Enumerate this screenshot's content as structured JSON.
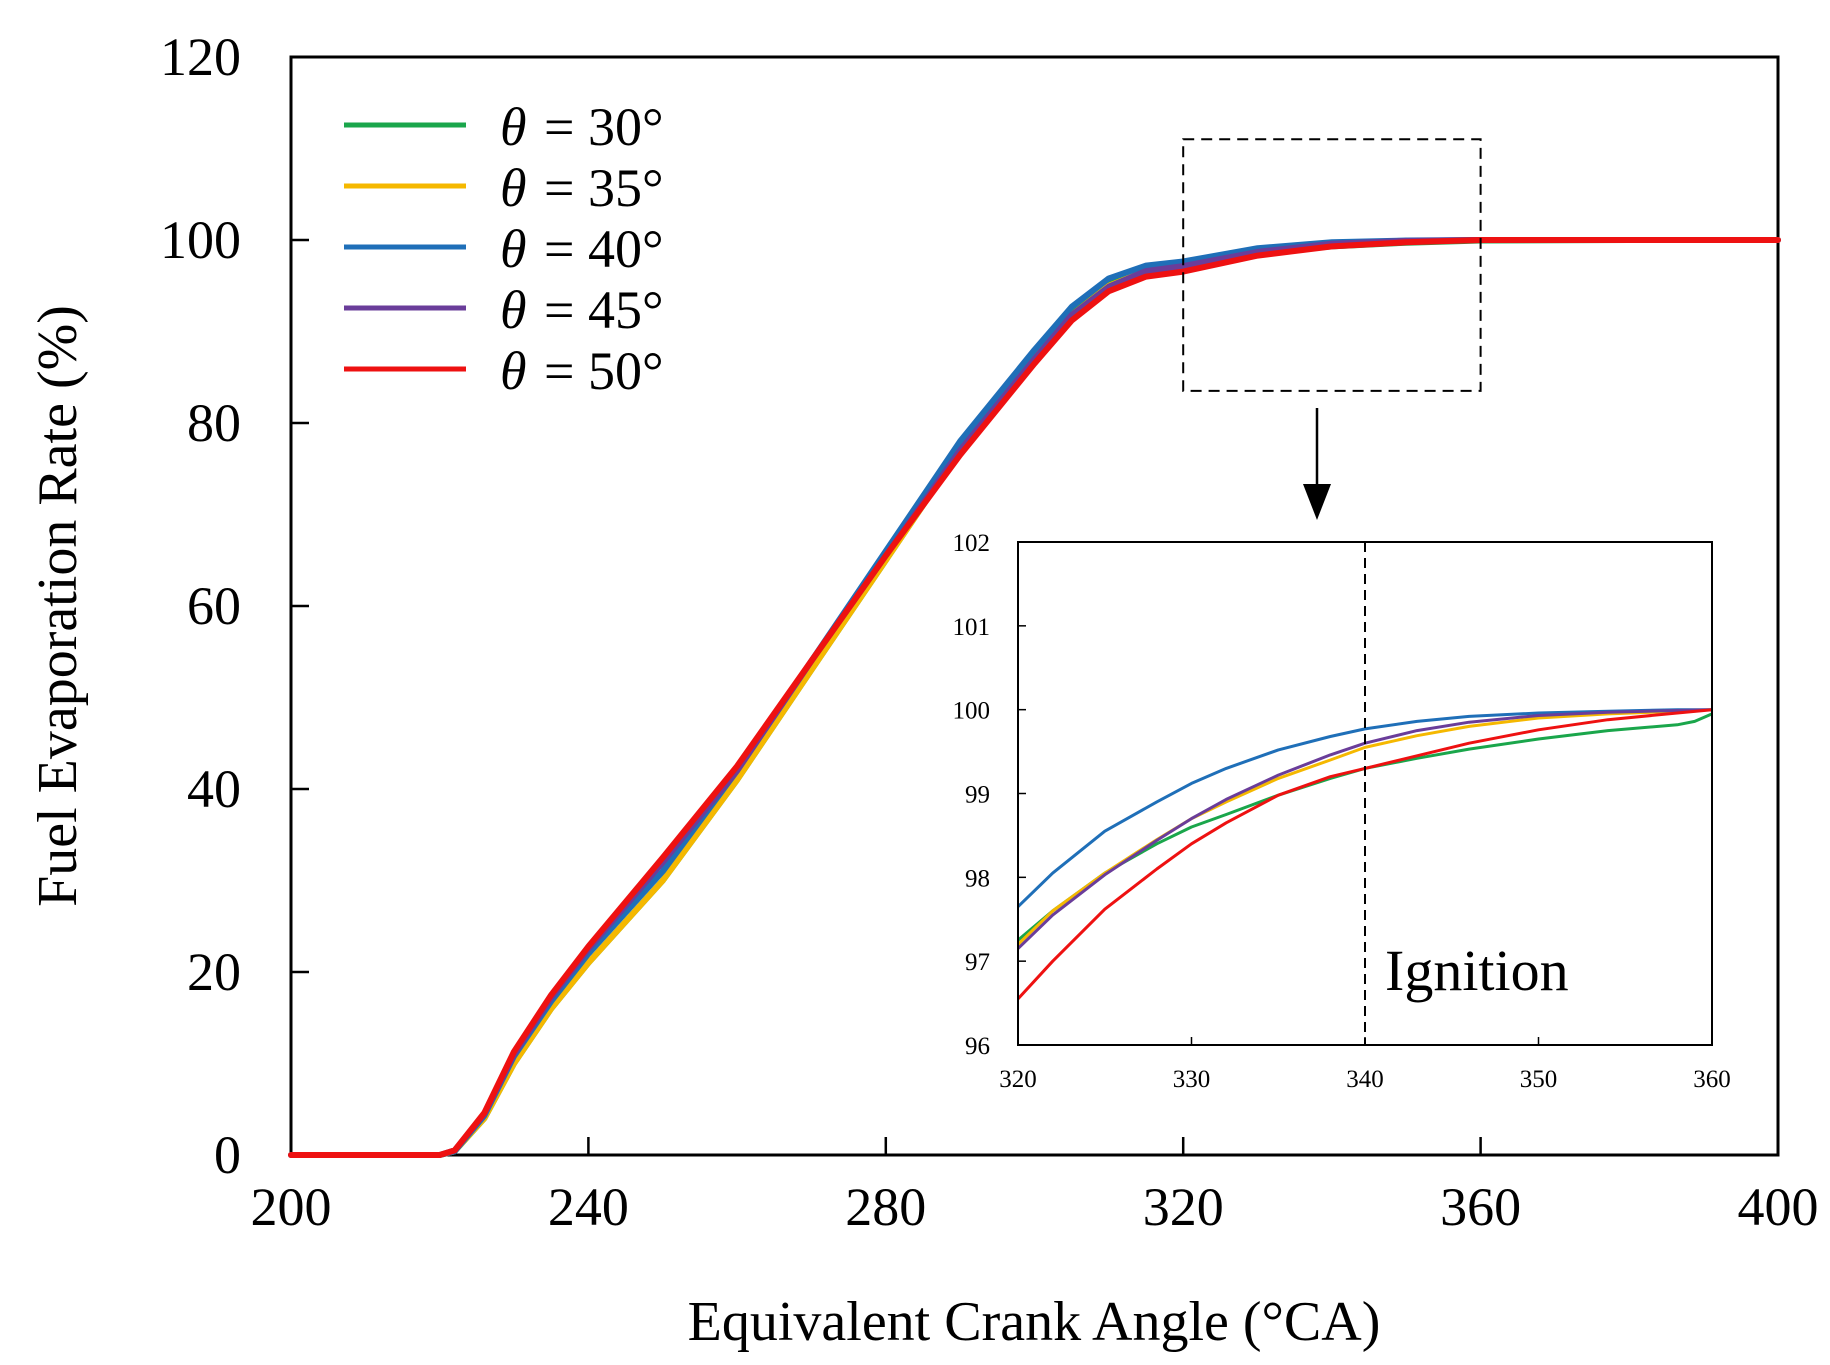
{
  "colors": {
    "theta_30": "#1aa64b",
    "theta_35": "#f5b800",
    "theta_40": "#1f6fb8",
    "theta_45": "#6a3d9a",
    "theta_50": "#ee1111"
  },
  "chart_data": [
    {
      "type": "line",
      "title": "",
      "xlabel": "Equivalent Crank Angle  (°CA)",
      "ylabel": "Fuel Evaporation Rate  (%)",
      "xlim": [
        200,
        400
      ],
      "ylim": [
        0,
        120
      ],
      "xticks": [
        "200",
        "240",
        "280",
        "320",
        "360",
        "400"
      ],
      "yticks": [
        "0",
        "20",
        "40",
        "60",
        "80",
        "100",
        "120"
      ],
      "grid": false,
      "legend_position": "top-left",
      "series": [
        {
          "name": "30°",
          "color_key": "theta_30",
          "x": [
            200,
            220,
            222,
            226,
            230,
            235,
            240,
            250,
            260,
            270,
            280,
            290,
            300,
            305,
            310,
            315,
            320,
            330,
            340,
            350,
            360,
            380,
            400
          ],
          "y": [
            0,
            0,
            0.4,
            4,
            10,
            16,
            21,
            30,
            41,
            53,
            65,
            77,
            87,
            92,
            95.2,
            97.0,
            97.3,
            98.6,
            99.3,
            99.7,
            99.95,
            100,
            100
          ]
        },
        {
          "name": "35°",
          "color_key": "theta_35",
          "x": [
            200,
            220,
            222,
            226,
            230,
            235,
            240,
            250,
            260,
            270,
            280,
            290,
            300,
            305,
            310,
            315,
            320,
            330,
            340,
            350,
            360,
            380,
            400
          ],
          "y": [
            0,
            0,
            0.4,
            4,
            10,
            16,
            21,
            30,
            41,
            53,
            65,
            77,
            87,
            91.8,
            95.0,
            96.6,
            97.2,
            98.7,
            99.5,
            99.85,
            100,
            100,
            100
          ]
        },
        {
          "name": "40°",
          "color_key": "theta_40",
          "x": [
            200,
            220,
            222,
            226,
            230,
            235,
            240,
            250,
            260,
            270,
            280,
            290,
            300,
            305,
            310,
            315,
            320,
            330,
            340,
            350,
            360,
            380,
            400
          ],
          "y": [
            0,
            0,
            0.4,
            4.3,
            10.8,
            16.8,
            22,
            31,
            42,
            54,
            66,
            78,
            88,
            92.7,
            95.8,
            97.2,
            97.65,
            99.1,
            99.75,
            99.95,
            100,
            100,
            100
          ]
        },
        {
          "name": "45°",
          "color_key": "theta_45",
          "x": [
            200,
            220,
            222,
            226,
            230,
            235,
            240,
            250,
            260,
            270,
            280,
            290,
            300,
            305,
            310,
            315,
            320,
            330,
            340,
            350,
            360,
            380,
            400
          ],
          "y": [
            0,
            0,
            0.5,
            4.5,
            11,
            17.2,
            22.5,
            32,
            42,
            54,
            65.5,
            77,
            87,
            91.8,
            94.9,
            96.6,
            97.15,
            98.7,
            99.6,
            99.9,
            100,
            100,
            100
          ]
        },
        {
          "name": "50°",
          "color_key": "theta_50",
          "x": [
            200,
            220,
            222,
            226,
            230,
            235,
            240,
            250,
            260,
            270,
            280,
            290,
            300,
            305,
            310,
            315,
            320,
            330,
            340,
            350,
            360,
            380,
            400
          ],
          "y": [
            0,
            0,
            0.5,
            4.6,
            11.3,
            17.5,
            22.8,
            32.5,
            42.5,
            54,
            65.5,
            76.5,
            86.5,
            91.2,
            94.4,
            96.0,
            96.55,
            98.3,
            99.3,
            99.75,
            100,
            100,
            100
          ]
        }
      ],
      "legend": [
        {
          "symbol": "θ",
          "text": "= 30°",
          "color_key": "theta_30"
        },
        {
          "symbol": "θ",
          "text": "= 35°",
          "color_key": "theta_35"
        },
        {
          "symbol": "θ",
          "text": "= 40°",
          "color_key": "theta_40"
        },
        {
          "symbol": "θ",
          "text": "= 45°",
          "color_key": "theta_45"
        },
        {
          "symbol": "θ",
          "text": "= 50°",
          "color_key": "theta_50"
        }
      ],
      "zoom_box": {
        "x_range": [
          320,
          360
        ],
        "y_range": [
          83.5,
          111
        ]
      }
    },
    {
      "type": "line",
      "title": "",
      "xlabel": "",
      "ylabel": "",
      "xlim": [
        320,
        360
      ],
      "ylim": [
        96,
        102
      ],
      "xticks": [
        "320",
        "330",
        "340",
        "350",
        "360"
      ],
      "yticks": [
        "96",
        "97",
        "98",
        "99",
        "100",
        "101",
        "102"
      ],
      "grid": false,
      "annotation": {
        "text": "Ignition",
        "x": 340
      },
      "series": [
        {
          "name": "30°",
          "color_key": "theta_30",
          "x": [
            320,
            322,
            325,
            328,
            330,
            332,
            335,
            338,
            340,
            343,
            346,
            350,
            354,
            358,
            359,
            360
          ],
          "y": [
            97.25,
            97.6,
            98.05,
            98.4,
            98.6,
            98.75,
            98.98,
            99.18,
            99.3,
            99.42,
            99.53,
            99.65,
            99.75,
            99.82,
            99.86,
            99.95
          ]
        },
        {
          "name": "35°",
          "color_key": "theta_35",
          "x": [
            320,
            322,
            325,
            328,
            330,
            332,
            335,
            338,
            340,
            343,
            346,
            350,
            354,
            358,
            360
          ],
          "y": [
            97.2,
            97.6,
            98.05,
            98.45,
            98.7,
            98.9,
            99.18,
            99.4,
            99.55,
            99.69,
            99.8,
            99.9,
            99.95,
            99.98,
            100
          ]
        },
        {
          "name": "40°",
          "color_key": "theta_40",
          "x": [
            320,
            322,
            325,
            328,
            330,
            332,
            335,
            338,
            340,
            343,
            346,
            350,
            354,
            358,
            360
          ],
          "y": [
            97.65,
            98.05,
            98.55,
            98.9,
            99.12,
            99.3,
            99.52,
            99.68,
            99.77,
            99.86,
            99.92,
            99.96,
            99.98,
            100,
            100
          ]
        },
        {
          "name": "45°",
          "color_key": "theta_45",
          "x": [
            320,
            322,
            325,
            328,
            330,
            332,
            335,
            338,
            340,
            343,
            346,
            350,
            354,
            358,
            360
          ],
          "y": [
            97.15,
            97.55,
            98.03,
            98.44,
            98.7,
            98.93,
            99.22,
            99.46,
            99.6,
            99.75,
            99.85,
            99.93,
            99.97,
            99.99,
            100
          ]
        },
        {
          "name": "50°",
          "color_key": "theta_50",
          "x": [
            320,
            322,
            325,
            328,
            330,
            332,
            335,
            338,
            340,
            343,
            346,
            350,
            354,
            358,
            360
          ],
          "y": [
            96.55,
            97.0,
            97.62,
            98.1,
            98.4,
            98.65,
            98.98,
            99.2,
            99.3,
            99.45,
            99.6,
            99.76,
            99.88,
            99.96,
            100
          ]
        }
      ]
    }
  ]
}
